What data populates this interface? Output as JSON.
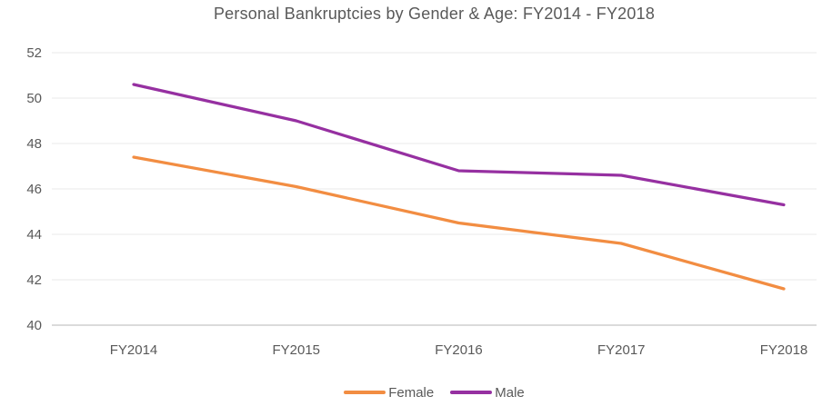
{
  "chart_data": {
    "type": "line",
    "title": "Personal Bankruptcies by Gender & Age: FY2014 - FY2018",
    "categories": [
      "FY2014",
      "FY2015",
      "FY2016",
      "FY2017",
      "FY2018"
    ],
    "series": [
      {
        "name": "Female",
        "color": "#F28D42",
        "values": [
          47.4,
          46.1,
          44.5,
          43.6,
          41.6
        ]
      },
      {
        "name": "Male",
        "color": "#9630A1",
        "values": [
          50.6,
          49.0,
          46.8,
          46.6,
          45.3
        ]
      }
    ],
    "ylim": [
      40,
      52
    ],
    "yticks": [
      40,
      42,
      44,
      46,
      48,
      50,
      52
    ],
    "xlabel": "",
    "ylabel": "",
    "grid": "horizontal",
    "legend_position": "bottom"
  },
  "styles": {
    "text_color": "#595959",
    "gridline_color": "#E9E9E9",
    "axis_line_color": "#CFCFCF",
    "background_color": "#FFFFFF"
  }
}
